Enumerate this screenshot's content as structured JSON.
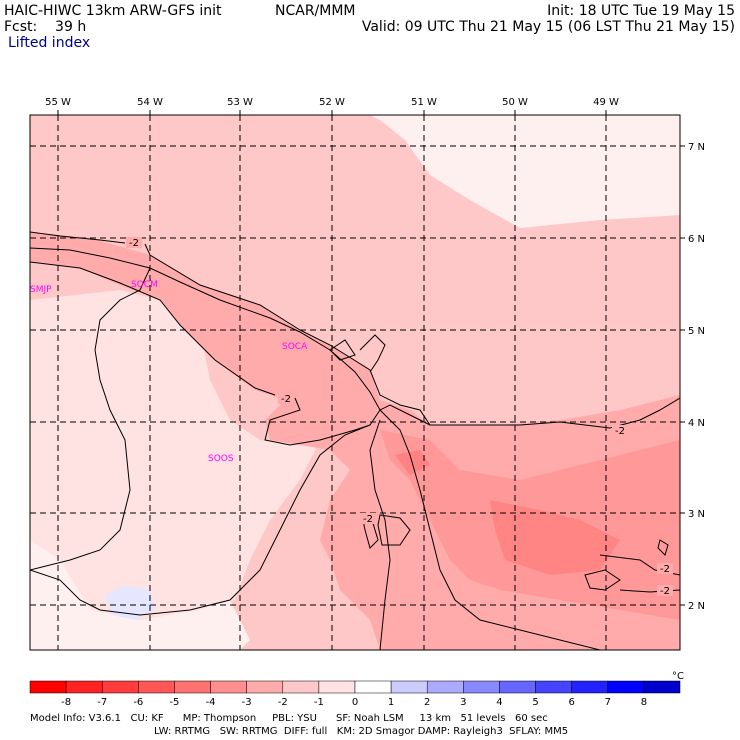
{
  "header": {
    "model": "HAIC-HIWC 13km ARW-GFS init",
    "org": "NCAR/MMM",
    "init": "Init: 18 UTC Tue 19 May 15",
    "fcst": "Fcst:    39 h",
    "valid": "Valid: 09 UTC Thu 21 May 15 (06 LST Thu 21 May 15)",
    "field": "Lifted index"
  },
  "map": {
    "lon_labels": [
      "55 W",
      "54 W",
      "53 W",
      "52 W",
      "51 W",
      "50 W",
      "49 W"
    ],
    "lat_labels": [
      "7 N",
      "6 N",
      "5 N",
      "4 N",
      "3 N",
      "2 N"
    ],
    "contour_label": "-2",
    "stations": [
      "SMJP",
      "SOCM",
      "SOCA",
      "SOOS"
    ]
  },
  "colorbar": {
    "values": [
      "-8",
      "-7",
      "-6",
      "-5",
      "-4",
      "-3",
      "-2",
      "-1",
      "0",
      "1",
      "2",
      "3",
      "4",
      "5",
      "6",
      "7",
      "8"
    ],
    "unit": "°C",
    "colors": [
      "#ff0000",
      "#ff2222",
      "#ff3b3b",
      "#ff5656",
      "#ff7272",
      "#ff8f8f",
      "#ffabab",
      "#ffc8c8",
      "#ffe2e2",
      "#ffffff",
      "#ccccff",
      "#aaaaff",
      "#8888ff",
      "#6666ff",
      "#4444ff",
      "#2222ff",
      "#0000ff",
      "#0000cc"
    ]
  },
  "footer": {
    "line1": "Model Info: V3.6.1   CU: KF      MP: Thompson     PBL: YSU      SF: Noah LSM     13 km   51 levels   60 sec",
    "line2": "LW: RRTMG   SW: RRTMG  DIFF: full   KM: 2D Smagor DAMP: Rayleigh3  SFLAY: MM5"
  }
}
